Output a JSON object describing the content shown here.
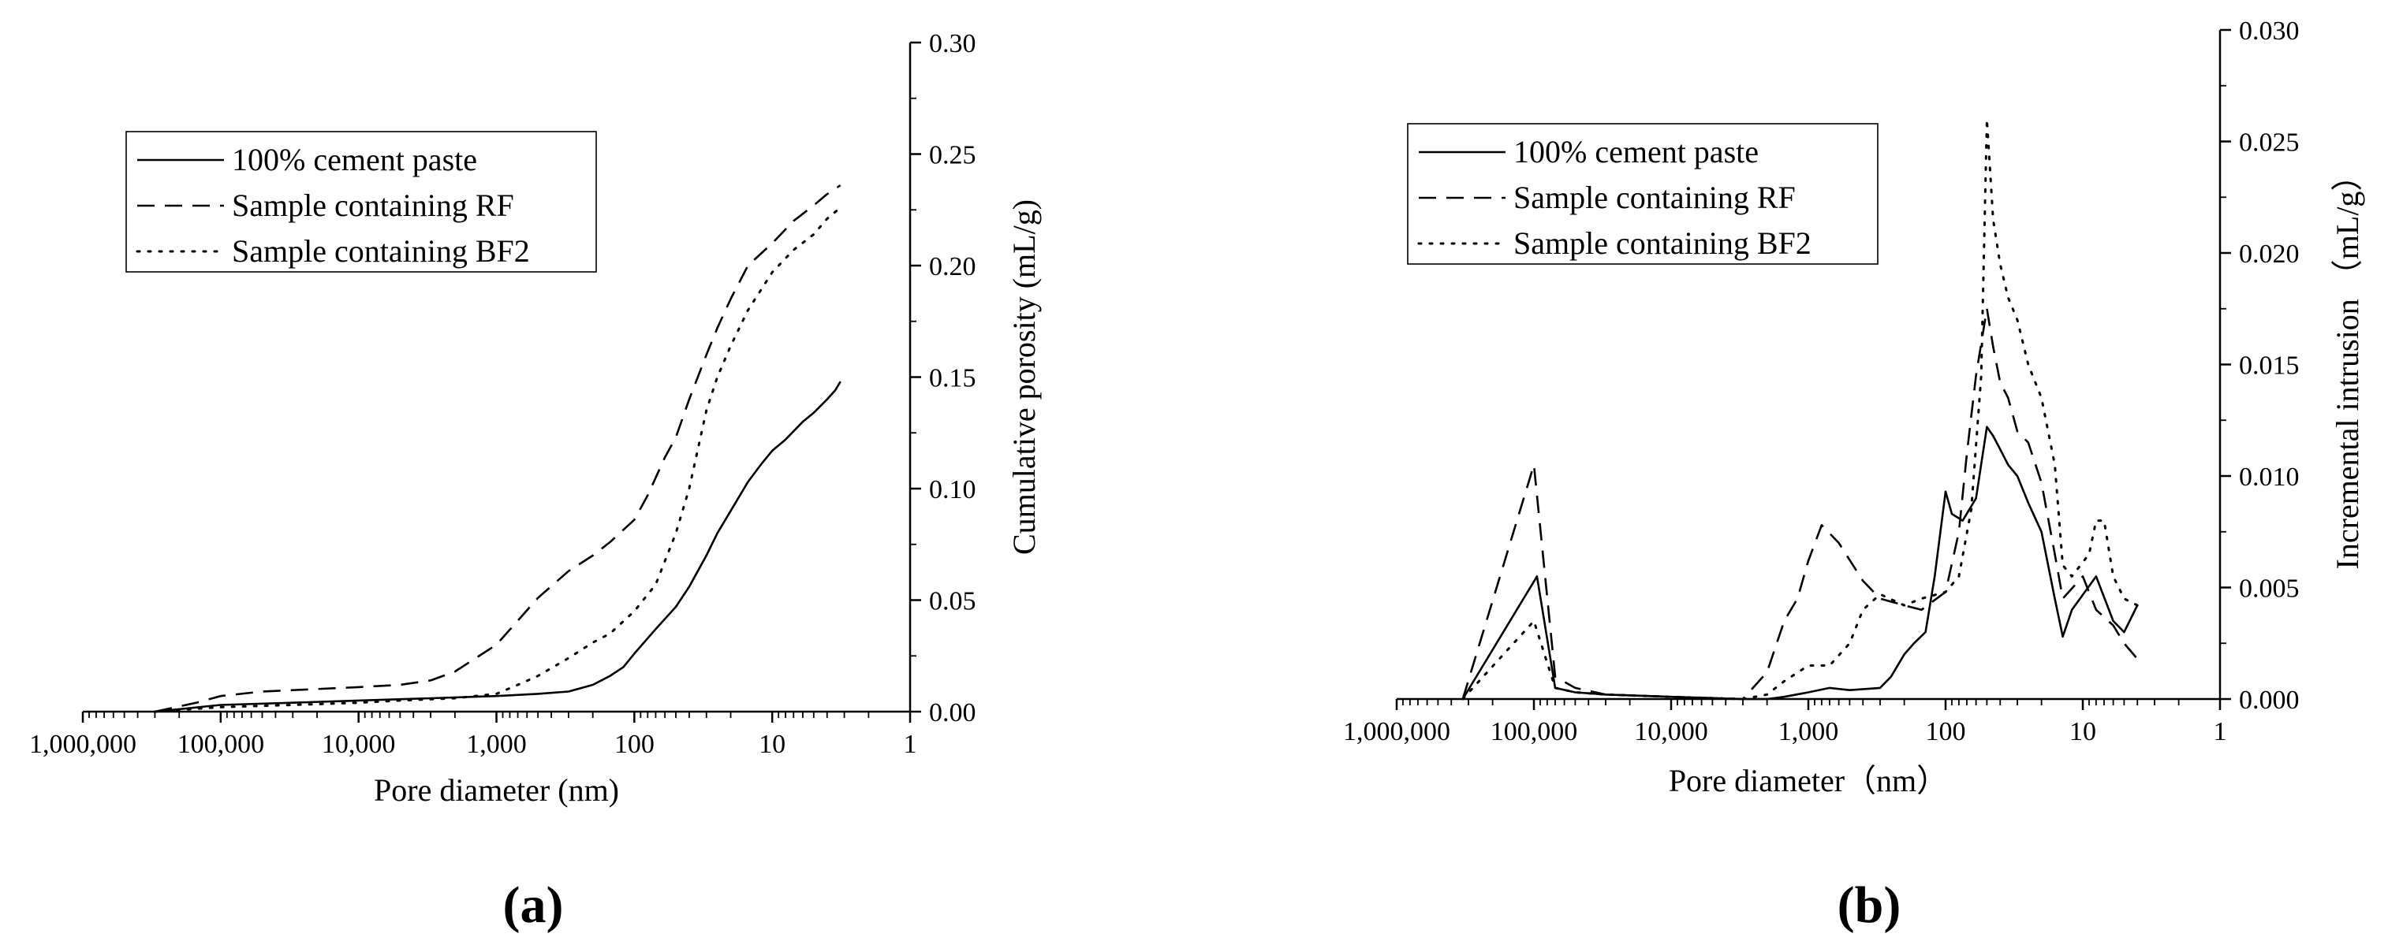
{
  "chart_data": [
    {
      "id": "a",
      "type": "line",
      "panel_label": "(a)",
      "xlabel": "Pore diameter (nm)",
      "ylabel": "Cumulative porosity (mL/g)",
      "x_scale": "log",
      "x_reversed": true,
      "xlim": [
        1000000,
        1
      ],
      "ylim": [
        0,
        0.3
      ],
      "x_ticks": [
        1000000,
        100000,
        10000,
        1000,
        100,
        10,
        1
      ],
      "x_tick_labels": [
        "1,000,000",
        "100,000",
        "10,000",
        "1,000",
        "100",
        "10",
        "1"
      ],
      "y_ticks": [
        0,
        0.05,
        0.1,
        0.15,
        0.2,
        0.25,
        0.3
      ],
      "y_tick_labels": [
        "0.00",
        "0.05",
        "0.10",
        "0.15",
        "0.20",
        "0.25",
        "0.30"
      ],
      "y_axis_side": "right",
      "legend_position": "top-left",
      "series": [
        {
          "name": "100% cement paste",
          "style": "solid",
          "points": [
            [
              300000,
              0.0
            ],
            [
              100000,
              0.003
            ],
            [
              30000,
              0.004
            ],
            [
              10000,
              0.005
            ],
            [
              3000,
              0.006
            ],
            [
              1000,
              0.007
            ],
            [
              500,
              0.008
            ],
            [
              300,
              0.009
            ],
            [
              200,
              0.012
            ],
            [
              150,
              0.016
            ],
            [
              120,
              0.02
            ],
            [
              100,
              0.026
            ],
            [
              70,
              0.037
            ],
            [
              50,
              0.047
            ],
            [
              40,
              0.056
            ],
            [
              30,
              0.07
            ],
            [
              25,
              0.08
            ],
            [
              20,
              0.09
            ],
            [
              15,
              0.103
            ],
            [
              12,
              0.111
            ],
            [
              10,
              0.117
            ],
            [
              8,
              0.122
            ],
            [
              6,
              0.13
            ],
            [
              5,
              0.134
            ],
            [
              4,
              0.14
            ],
            [
              3.5,
              0.144
            ],
            [
              3.2,
              0.148
            ]
          ]
        },
        {
          "name": "Sample containing RF",
          "style": "dashed",
          "points": [
            [
              300000,
              0.0
            ],
            [
              150000,
              0.004
            ],
            [
              100000,
              0.007
            ],
            [
              50000,
              0.009
            ],
            [
              10000,
              0.011
            ],
            [
              5000,
              0.012
            ],
            [
              3000,
              0.014
            ],
            [
              2000,
              0.018
            ],
            [
              1000,
              0.03
            ],
            [
              500,
              0.051
            ],
            [
              300,
              0.063
            ],
            [
              200,
              0.07
            ],
            [
              150,
              0.076
            ],
            [
              100,
              0.086
            ],
            [
              80,
              0.097
            ],
            [
              60,
              0.114
            ],
            [
              50,
              0.123
            ],
            [
              40,
              0.14
            ],
            [
              30,
              0.16
            ],
            [
              25,
              0.172
            ],
            [
              20,
              0.185
            ],
            [
              15,
              0.2
            ],
            [
              10,
              0.21
            ],
            [
              7,
              0.22
            ],
            [
              5,
              0.227
            ],
            [
              4,
              0.232
            ],
            [
              3.2,
              0.236
            ]
          ]
        },
        {
          "name": "Sample containing BF2",
          "style": "dotted",
          "points": [
            [
              300000,
              0.0
            ],
            [
              100000,
              0.002
            ],
            [
              30000,
              0.003
            ],
            [
              10000,
              0.004
            ],
            [
              5000,
              0.005
            ],
            [
              2000,
              0.006
            ],
            [
              1000,
              0.008
            ],
            [
              700,
              0.012
            ],
            [
              500,
              0.016
            ],
            [
              300,
              0.024
            ],
            [
              200,
              0.031
            ],
            [
              150,
              0.035
            ],
            [
              100,
              0.045
            ],
            [
              70,
              0.057
            ],
            [
              50,
              0.08
            ],
            [
              40,
              0.1
            ],
            [
              30,
              0.135
            ],
            [
              25,
              0.15
            ],
            [
              20,
              0.164
            ],
            [
              15,
              0.18
            ],
            [
              10,
              0.197
            ],
            [
              7,
              0.207
            ],
            [
              5,
              0.214
            ],
            [
              4,
              0.221
            ],
            [
              3.2,
              0.226
            ]
          ]
        }
      ]
    },
    {
      "id": "b",
      "type": "line",
      "panel_label": "(b)",
      "xlabel": "Pore diameter（nm）",
      "ylabel": "Incremental intrusion （mL/g）",
      "x_scale": "log",
      "x_reversed": true,
      "xlim": [
        1000000,
        1
      ],
      "ylim": [
        0,
        0.03
      ],
      "x_ticks": [
        1000000,
        100000,
        10000,
        1000,
        100,
        10,
        1
      ],
      "x_tick_labels": [
        "1,000,000",
        "100,000",
        "10,000",
        "1,000",
        "100",
        "10",
        "1"
      ],
      "y_ticks": [
        0,
        0.005,
        0.01,
        0.015,
        0.02,
        0.025,
        0.03
      ],
      "y_tick_labels": [
        "0.000",
        "0.005",
        "0.010",
        "0.015",
        "0.020",
        "0.025",
        "0.030"
      ],
      "y_axis_side": "right",
      "legend_position": "top-left",
      "series": [
        {
          "name": "100% cement paste",
          "style": "solid",
          "points": [
            [
              330000,
              0.0
            ],
            [
              95000,
              0.0055
            ],
            [
              70000,
              0.0005
            ],
            [
              50000,
              0.0003
            ],
            [
              30000,
              0.0002
            ],
            [
              10000,
              0.0001
            ],
            [
              3000,
              0.0
            ],
            [
              2000,
              0.0
            ],
            [
              1500,
              0.0001
            ],
            [
              1000,
              0.0003
            ],
            [
              700,
              0.0005
            ],
            [
              500,
              0.0004
            ],
            [
              300,
              0.0005
            ],
            [
              250,
              0.001
            ],
            [
              200,
              0.002
            ],
            [
              170,
              0.0025
            ],
            [
              140,
              0.003
            ],
            [
              120,
              0.0055
            ],
            [
              100,
              0.0093
            ],
            [
              90,
              0.0083
            ],
            [
              75,
              0.008
            ],
            [
              60,
              0.009
            ],
            [
              50,
              0.0122
            ],
            [
              45,
              0.0118
            ],
            [
              40,
              0.0112
            ],
            [
              35,
              0.0105
            ],
            [
              30,
              0.01
            ],
            [
              25,
              0.0088
            ],
            [
              20,
              0.0075
            ],
            [
              16,
              0.0045
            ],
            [
              14,
              0.0028
            ],
            [
              12,
              0.004
            ],
            [
              8,
              0.0055
            ],
            [
              6,
              0.0035
            ],
            [
              5,
              0.003
            ],
            [
              4,
              0.0042
            ]
          ]
        },
        {
          "name": "Sample containing RF",
          "style": "dashed",
          "points": [
            [
              330000,
              0.0
            ],
            [
              100000,
              0.0105
            ],
            [
              70000,
              0.001
            ],
            [
              50000,
              0.0005
            ],
            [
              30000,
              0.0002
            ],
            [
              10000,
              0.0001
            ],
            [
              3000,
              0.0
            ],
            [
              2000,
              0.0012
            ],
            [
              1500,
              0.0035
            ],
            [
              1200,
              0.0045
            ],
            [
              1000,
              0.0062
            ],
            [
              800,
              0.0078
            ],
            [
              600,
              0.007
            ],
            [
              400,
              0.0053
            ],
            [
              300,
              0.0045
            ],
            [
              200,
              0.0042
            ],
            [
              150,
              0.004
            ],
            [
              100,
              0.0048
            ],
            [
              80,
              0.0075
            ],
            [
              70,
              0.011
            ],
            [
              60,
              0.0145
            ],
            [
              50,
              0.0175
            ],
            [
              45,
              0.0158
            ],
            [
              40,
              0.0142
            ],
            [
              35,
              0.0135
            ],
            [
              30,
              0.012
            ],
            [
              25,
              0.0115
            ],
            [
              20,
              0.0097
            ],
            [
              16,
              0.0065
            ],
            [
              14,
              0.0045
            ],
            [
              10,
              0.0055
            ],
            [
              8,
              0.004
            ],
            [
              6,
              0.0033
            ],
            [
              5,
              0.0025
            ],
            [
              4,
              0.0018
            ]
          ]
        },
        {
          "name": "Sample containing BF2",
          "style": "dotted",
          "points": [
            [
              330000,
              0.0
            ],
            [
              100000,
              0.0035
            ],
            [
              70000,
              0.0005
            ],
            [
              50000,
              0.0003
            ],
            [
              30000,
              0.0002
            ],
            [
              10000,
              0.0001
            ],
            [
              3000,
              0.0
            ],
            [
              2000,
              0.0002
            ],
            [
              1500,
              0.0008
            ],
            [
              1000,
              0.0015
            ],
            [
              700,
              0.0015
            ],
            [
              500,
              0.0025
            ],
            [
              400,
              0.004
            ],
            [
              300,
              0.0047
            ],
            [
              200,
              0.0042
            ],
            [
              150,
              0.0045
            ],
            [
              100,
              0.0048
            ],
            [
              80,
              0.0055
            ],
            [
              65,
              0.0085
            ],
            [
              55,
              0.0145
            ],
            [
              50,
              0.026
            ],
            [
              45,
              0.0215
            ],
            [
              40,
              0.0195
            ],
            [
              35,
              0.018
            ],
            [
              30,
              0.017
            ],
            [
              25,
              0.015
            ],
            [
              20,
              0.0135
            ],
            [
              16,
              0.0105
            ],
            [
              14,
              0.006
            ],
            [
              12,
              0.0055
            ],
            [
              9,
              0.0065
            ],
            [
              8,
              0.008
            ],
            [
              7,
              0.008
            ],
            [
              6,
              0.0055
            ],
            [
              5,
              0.0045
            ],
            [
              4,
              0.0042
            ]
          ]
        }
      ]
    }
  ]
}
